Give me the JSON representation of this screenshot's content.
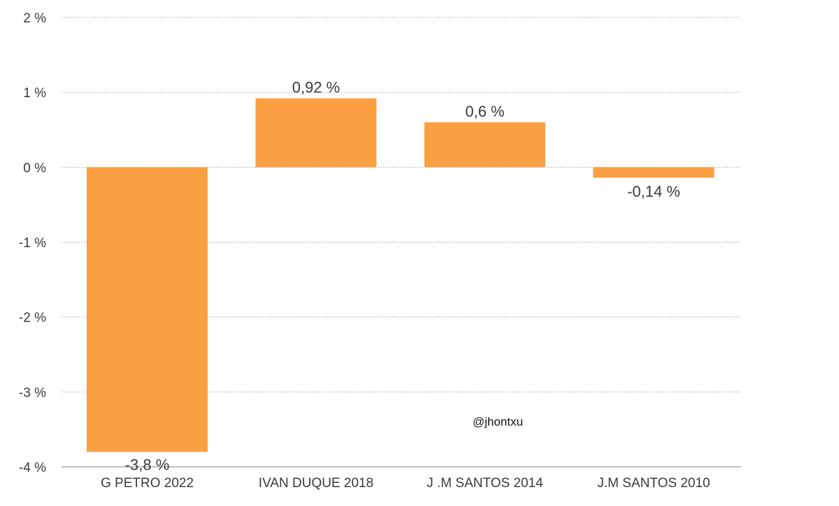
{
  "chart_data": {
    "type": "bar",
    "title": "",
    "xlabel": "",
    "ylabel": "",
    "categories": [
      "G PETRO 2022",
      "IVAN DUQUE 2018",
      "J .M SANTOS 2014",
      "J.M SANTOS 2010"
    ],
    "values": [
      -3.8,
      0.92,
      0.6,
      -0.14
    ],
    "data_labels": [
      "-3,8 %",
      "0,92 %",
      "0,6 %",
      "-0,14 %"
    ],
    "ylim": [
      -4,
      2
    ],
    "yticks": [
      2,
      1,
      0,
      -1,
      -2,
      -3,
      -4
    ],
    "ytick_labels": [
      "2 %",
      "1 %",
      "0 %",
      "-1 %",
      "-2 %",
      "-3 %",
      "-4 %"
    ],
    "grid": true,
    "grid_style": "dotted",
    "legend": "none",
    "bar_color": "#FBA042",
    "watermark": "@jhontxu"
  }
}
